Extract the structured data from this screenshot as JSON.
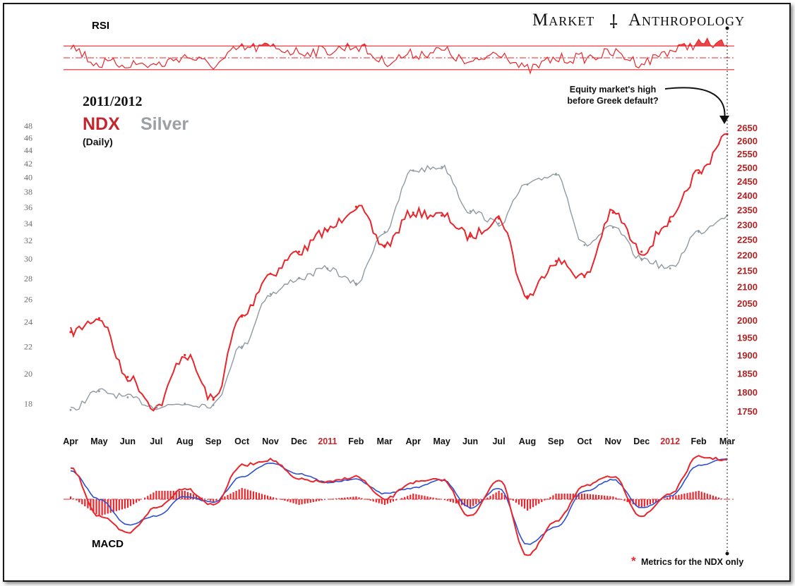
{
  "brand": {
    "word1": "Market",
    "mark": "⸸",
    "word2": "Anthropology"
  },
  "header": {
    "period": "2011/2012",
    "series1_label": "NDX",
    "series2_label": "Silver",
    "interval": "(Daily)"
  },
  "panels": {
    "rsi_label": "RSI",
    "macd_label": "MACD"
  },
  "annotation": {
    "line1": "Equity market's high",
    "line2": "before Greek default?"
  },
  "footnote": {
    "asterisk": "*",
    "text": "Metrics for the NDX only"
  },
  "colors": {
    "ndx": "#e8262b",
    "silver": "#8f9aa3",
    "macd_signal": "#2b4fd1",
    "axis_left": "#6d6d6d",
    "axis_right": "#b22222",
    "year_marker": "#c0282d"
  },
  "chart_data": [
    {
      "type": "line",
      "title": "2011/2012 NDX Silver (Daily)",
      "x_axis": {
        "ticks": [
          "Apr",
          "May",
          "Jun",
          "Jul",
          "Aug",
          "Sep",
          "Oct",
          "Nov",
          "Dec",
          "2011",
          "Feb",
          "Mar",
          "Apr",
          "May",
          "Jun",
          "Jul",
          "Aug",
          "Sep",
          "Oct",
          "Nov",
          "Dec",
          "2012",
          "Feb",
          "Mar"
        ],
        "highlighted": [
          "2011",
          "2012"
        ]
      },
      "y_left": {
        "series": "Silver",
        "scale": "log",
        "ticks": [
          18,
          20,
          22,
          24,
          26,
          28,
          30,
          32,
          34,
          36,
          38,
          40,
          42,
          44,
          46,
          48
        ],
        "range": [
          16.8,
          49
        ]
      },
      "y_right": {
        "series": "NDX",
        "scale": "log",
        "ticks": [
          1750,
          1800,
          1850,
          1900,
          1950,
          2000,
          2050,
          2100,
          2150,
          2200,
          2250,
          2300,
          2350,
          2400,
          2450,
          2500,
          2550,
          2600,
          2650
        ],
        "range": [
          1720,
          2680
        ]
      },
      "x": [
        "Apr 2010",
        "May 2010",
        "Jun 2010",
        "Jul 2010",
        "Aug 2010",
        "Sep 2010",
        "Oct 2010",
        "Nov 2010",
        "Dec 2010",
        "Jan 2011",
        "Feb 2011",
        "Mar 2011",
        "Apr 2011",
        "May 2011",
        "Jun 2011",
        "Jul 2011",
        "Aug 2011",
        "Sep 2011",
        "Oct 2011",
        "Nov 2011",
        "Dec 2011",
        "Jan 2012",
        "Feb 2012",
        "Mar 2012"
      ],
      "series": [
        {
          "name": "NDX",
          "axis": "right",
          "values": [
            1965,
            2005,
            1840,
            1760,
            1900,
            1780,
            2010,
            2140,
            2210,
            2280,
            2360,
            2230,
            2340,
            2330,
            2260,
            2320,
            2070,
            2180,
            2130,
            2340,
            2210,
            2310,
            2480,
            2625
          ]
        },
        {
          "name": "Silver",
          "axis": "left",
          "values": [
            17.6,
            18.8,
            18.4,
            17.8,
            18.0,
            17.9,
            22.0,
            26.5,
            28.0,
            29.0,
            27.5,
            33.0,
            41.0,
            41.5,
            35.5,
            34.0,
            39.0,
            40.5,
            31.5,
            33.5,
            30.0,
            29.0,
            33.0,
            35.0
          ]
        }
      ]
    },
    {
      "type": "line",
      "title": "RSI",
      "x": [
        "Apr 2010",
        "May 2010",
        "Jun 2010",
        "Jul 2010",
        "Aug 2010",
        "Sep 2010",
        "Oct 2010",
        "Nov 2010",
        "Dec 2010",
        "Jan 2011",
        "Feb 2011",
        "Mar 2011",
        "Apr 2011",
        "May 2011",
        "Jun 2011",
        "Jul 2011",
        "Aug 2011",
        "Sep 2011",
        "Oct 2011",
        "Nov 2011",
        "Dec 2011",
        "Jan 2012",
        "Feb 2012",
        "Mar 2012"
      ],
      "ylim": [
        0,
        100
      ],
      "reference_lines": [
        30,
        50,
        70
      ],
      "series": [
        {
          "name": "NDX",
          "values": [
            68,
            40,
            40,
            38,
            52,
            38,
            66,
            68,
            60,
            62,
            70,
            44,
            56,
            62,
            40,
            60,
            30,
            48,
            50,
            58,
            42,
            62,
            74,
            72
          ]
        }
      ]
    },
    {
      "type": "bar",
      "title": "MACD",
      "x": [
        "Apr 2010",
        "May 2010",
        "Jun 2010",
        "Jul 2010",
        "Aug 2010",
        "Sep 2010",
        "Oct 2010",
        "Nov 2010",
        "Dec 2010",
        "Jan 2011",
        "Feb 2011",
        "Mar 2011",
        "Apr 2011",
        "May 2011",
        "Jun 2011",
        "Jul 2011",
        "Aug 2011",
        "Sep 2011",
        "Oct 2011",
        "Nov 2011",
        "Dec 2011",
        "Jan 2012",
        "Feb 2012",
        "Mar 2012"
      ],
      "series": [
        {
          "name": "NDX",
          "kind": "line",
          "values": [
            0.55,
            -0.3,
            -0.6,
            -0.15,
            0.2,
            -0.1,
            0.6,
            0.7,
            0.35,
            0.3,
            0.4,
            0.0,
            0.3,
            0.35,
            -0.3,
            0.35,
            -1.0,
            -0.4,
            0.25,
            0.4,
            -0.3,
            0.1,
            0.75,
            0.7
          ]
        },
        {
          "name": "signal",
          "kind": "line",
          "values": [
            0.5,
            0.0,
            -0.45,
            -0.3,
            0.05,
            -0.05,
            0.4,
            0.65,
            0.45,
            0.3,
            0.35,
            0.1,
            0.2,
            0.35,
            -0.15,
            0.2,
            -0.8,
            -0.5,
            0.15,
            0.35,
            -0.15,
            0.05,
            0.6,
            0.72
          ]
        },
        {
          "name": "histogram",
          "kind": "bar",
          "values": [
            0.05,
            -0.3,
            -0.15,
            0.15,
            0.15,
            -0.05,
            0.2,
            0.05,
            -0.1,
            0.0,
            0.05,
            -0.1,
            0.1,
            0.0,
            -0.15,
            0.15,
            -0.2,
            0.1,
            0.1,
            0.05,
            -0.15,
            0.05,
            0.15,
            -0.02
          ]
        }
      ]
    }
  ]
}
